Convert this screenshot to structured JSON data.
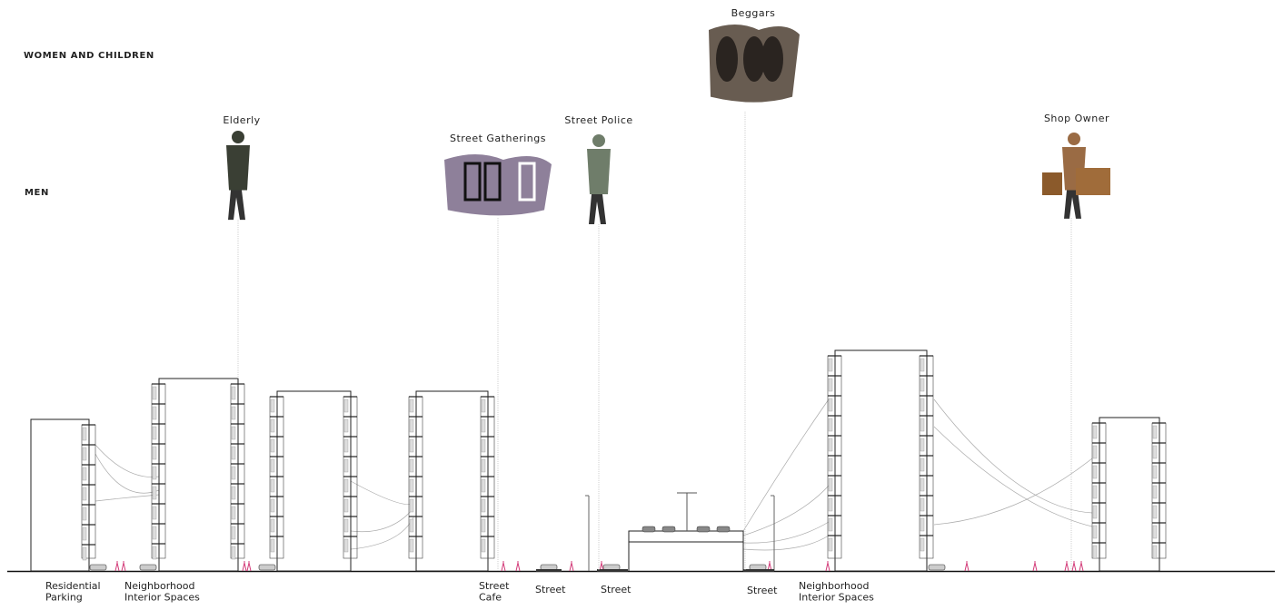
{
  "groups": {
    "women_children": "WOMEN AND CHILDREN",
    "men": "MEN"
  },
  "figures": [
    {
      "label": "Elderly"
    },
    {
      "label": "Street Gatherings"
    },
    {
      "label": "Street Police"
    },
    {
      "label": "Beggars"
    },
    {
      "label": "Shop Owner"
    }
  ],
  "places": [
    {
      "lines": [
        "Residential",
        "Parking"
      ]
    },
    {
      "lines": [
        "Neighborhood",
        "Interior Spaces"
      ]
    },
    {
      "lines": [
        "Street",
        "Cafe"
      ]
    },
    {
      "lines": [
        "Street"
      ]
    },
    {
      "lines": [
        "Street"
      ]
    },
    {
      "lines": [
        "Street"
      ]
    },
    {
      "lines": [
        "Neighborhood",
        "Interior Spaces"
      ]
    }
  ]
}
